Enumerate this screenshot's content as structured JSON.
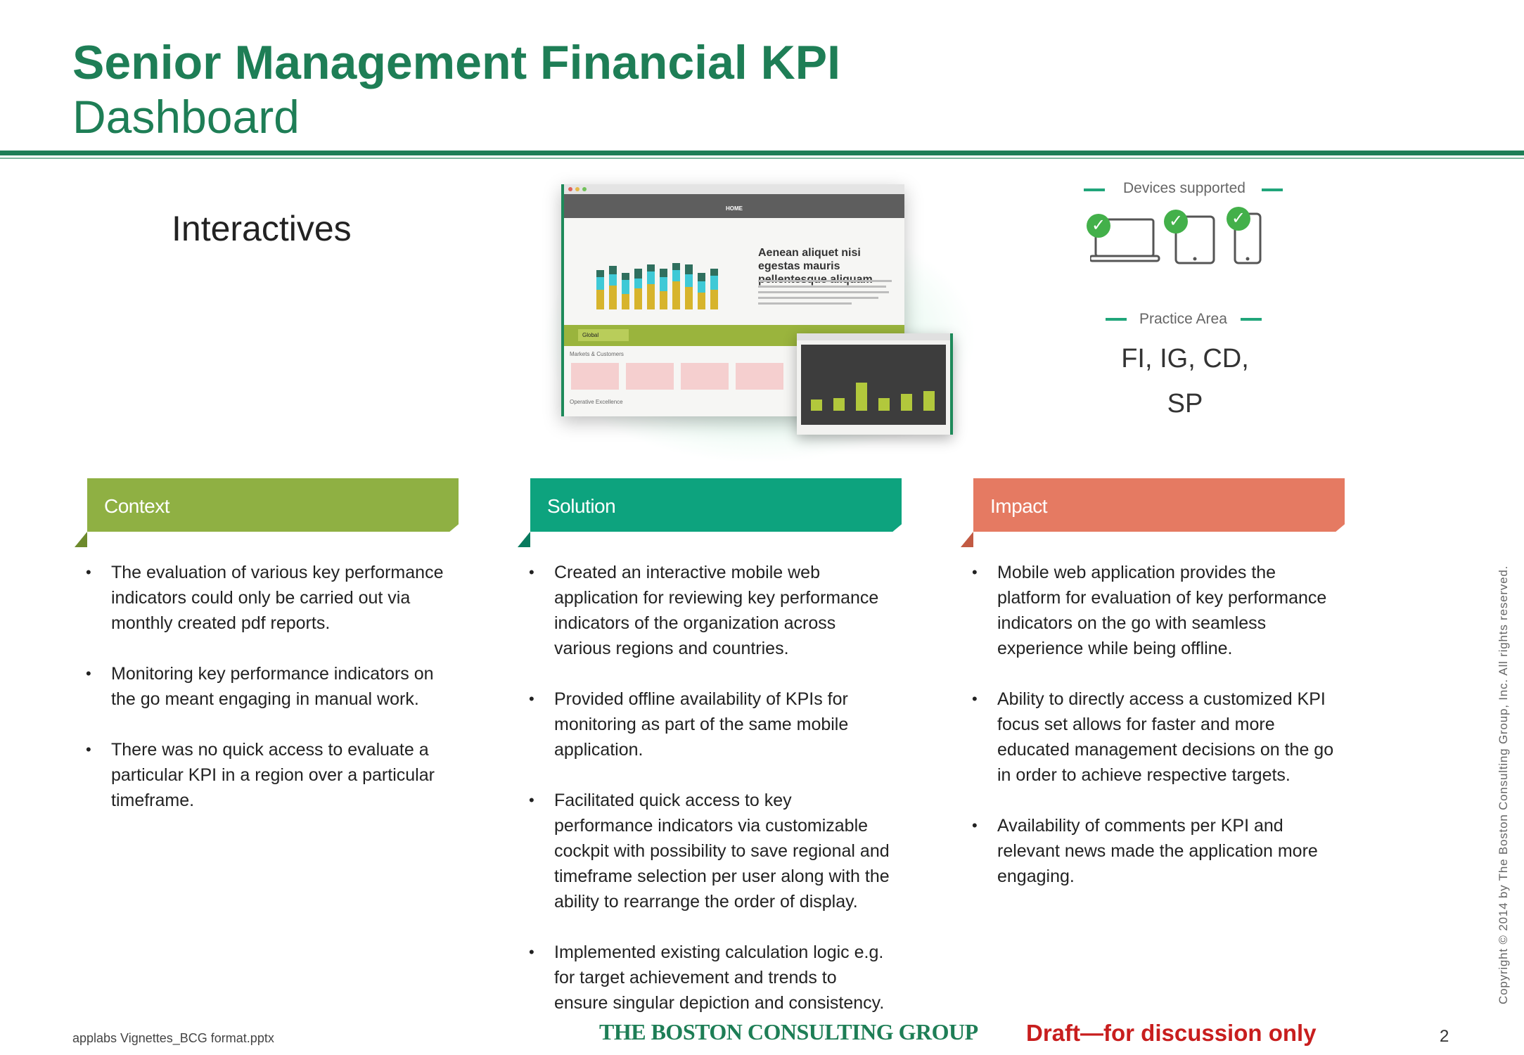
{
  "title": {
    "line1": "Senior Management Financial KPI",
    "line2": "Dashboard"
  },
  "category": "Interactives",
  "preview": {
    "home_label": "HOME",
    "headline": "Aenean aliquet nisi egestas mauris pellentesque aliquam",
    "region": "Global",
    "section_a": "Markets & Customers",
    "section_b": "Operative Excellence"
  },
  "devices": {
    "label": "Devices supported",
    "items": [
      "laptop-icon",
      "tablet-icon",
      "phone-icon"
    ],
    "check_mark": "✓"
  },
  "practice_area": {
    "label": "Practice Area",
    "line1": "FI, IG, CD,",
    "line2": "SP"
  },
  "sections": [
    {
      "title": "Context",
      "color": "#8fb043",
      "flap_color": "#6d8a2c",
      "bullets": [
        "The evaluation of various key performance indicators could only be carried out via monthly created pdf reports.",
        "Monitoring key performance indicators on the go meant engaging in manual work.",
        "There was no quick access to evaluate a particular KPI in a region over a particular timeframe."
      ]
    },
    {
      "title": "Solution",
      "color": "#0da37e",
      "flap_color": "#087a5e",
      "bullets": [
        "Created an interactive mobile web application for reviewing key performance indicators of the organization across various regions and countries.",
        "Provided offline availability of KPIs for monitoring as part of the same mobile application.",
        "Facilitated quick access to key performance indicators via customizable cockpit with possibility to save regional and timeframe selection per user along with the ability to rearrange the order of display.",
        "Implemented existing calculation logic e.g. for target achievement and trends to ensure singular depiction and consistency."
      ]
    },
    {
      "title": "Impact",
      "color": "#e57a62",
      "flap_color": "#c25a43",
      "bullets": [
        "Mobile web application provides the platform for evaluation of key performance indicators on the go with seamless experience while being offline.",
        "Ability to directly access a customized KPI focus set allows for faster and more educated management decisions on the go in order to achieve respective targets.",
        "Availability of comments per KPI and relevant news made the application more engaging."
      ]
    }
  ],
  "bullet_symbol": "•",
  "footer": {
    "file": "applabs Vignettes_BCG format.pptx",
    "logo": "THE BOSTON CONSULTING GROUP",
    "draft": "Draft—for discussion only",
    "page": "2",
    "copyright": "Copyright © 2014 by The Boston Consulting Group, Inc. All rights reserved."
  }
}
